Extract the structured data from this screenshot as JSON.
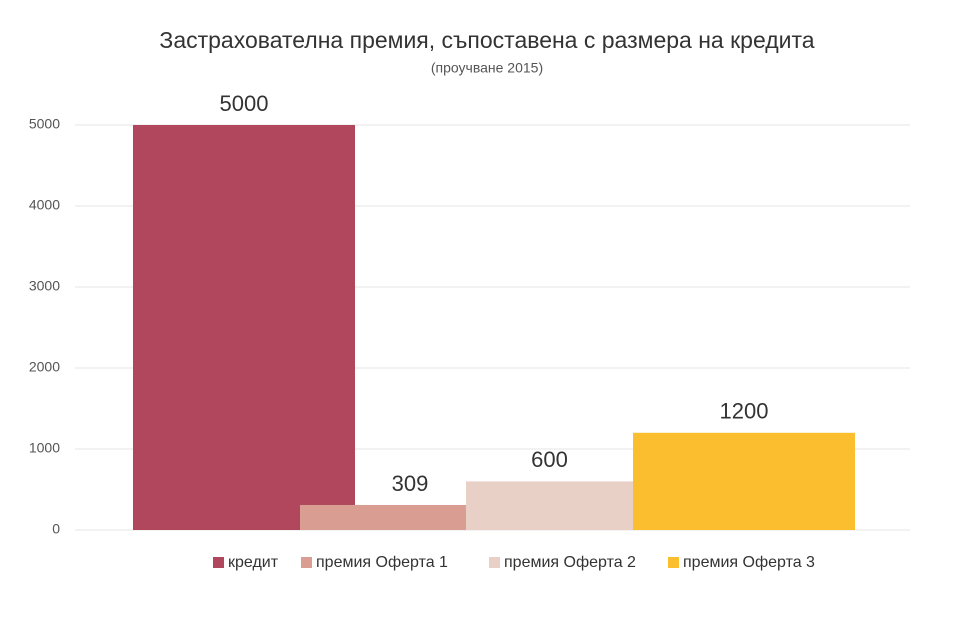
{
  "chart_data": {
    "type": "bar",
    "title": "Застрахователна премия, съпоставена с размера на кредита",
    "subtitle": "(проучване 2015)",
    "categories": [
      null
    ],
    "series": [
      {
        "name": "кредит",
        "color": "#b0475c",
        "values": [
          5000
        ]
      },
      {
        "name": "премия Оферта 1",
        "color": "#d99e91",
        "values": [
          309
        ]
      },
      {
        "name": "премия Оферта 2",
        "color": "#e9d0c7",
        "values": [
          600
        ]
      },
      {
        "name": "премия Оферта 3",
        "color": "#fbbe2e",
        "values": [
          1200
        ]
      }
    ],
    "ylim": [
      0,
      5000
    ],
    "yticks": [
      0,
      1000,
      2000,
      3000,
      4000,
      5000
    ],
    "grid": true,
    "legend": "bottom"
  }
}
